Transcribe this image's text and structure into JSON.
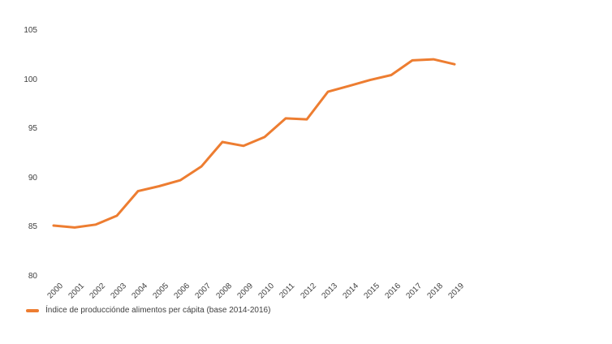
{
  "chart_data": {
    "type": "line",
    "title": "",
    "xlabel": "",
    "ylabel": "",
    "categories": [
      "2000",
      "2001",
      "2002",
      "2003",
      "2004",
      "2005",
      "2006",
      "2007",
      "2008",
      "2009",
      "2010",
      "2011",
      "2012",
      "2013",
      "2014",
      "2015",
      "2016",
      "2017",
      "2018",
      "2019"
    ],
    "series": [
      {
        "name": "Índice de producciónde alimentos per cápita (base 2014-2016)",
        "values": [
          85.2,
          85.0,
          85.3,
          86.2,
          88.7,
          89.2,
          89.8,
          91.2,
          93.7,
          93.3,
          94.2,
          96.1,
          96.0,
          98.8,
          99.4,
          100.0,
          100.5,
          102.0,
          102.1,
          101.6
        ],
        "color": "#ED7D31"
      }
    ],
    "ylim": [
      80,
      105
    ],
    "yticks": [
      80,
      85,
      90,
      95,
      100,
      105
    ],
    "grid": false,
    "legend_position": "bottom-left"
  },
  "colors": {
    "line": "#ED7D31",
    "text": "#404040",
    "background": "#FFFFFF"
  }
}
